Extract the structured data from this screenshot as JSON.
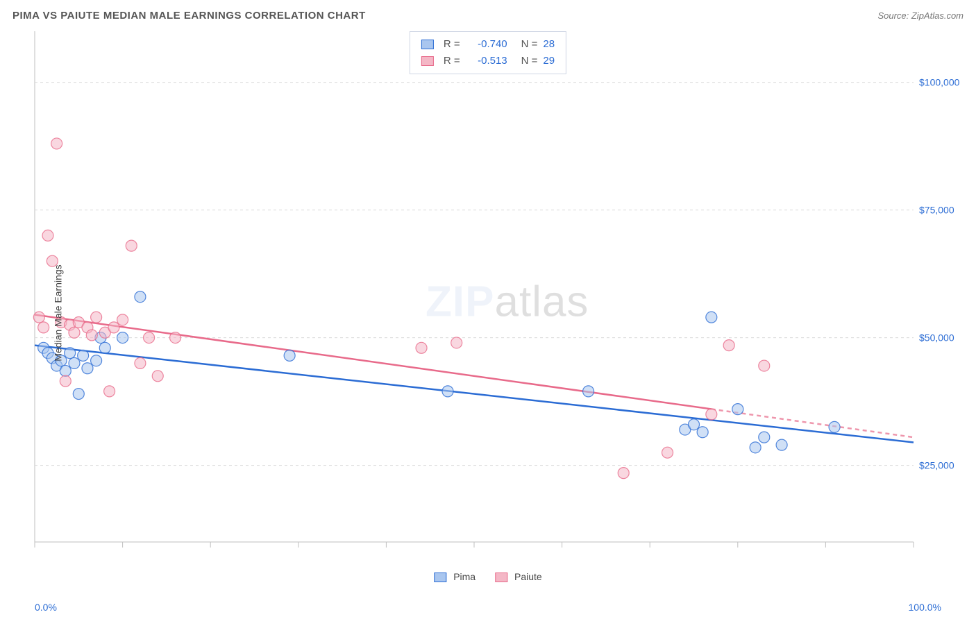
{
  "title": "PIMA VS PAIUTE MEDIAN MALE EARNINGS CORRELATION CHART",
  "source": "Source: ZipAtlas.com",
  "ylabel": "Median Male Earnings",
  "watermark_a": "ZIP",
  "watermark_b": "atlas",
  "chart": {
    "type": "scatter-with-regression",
    "background_color": "#ffffff",
    "grid_color": "#d9d9d9",
    "axis_color": "#bfbfbf",
    "tick_color": "#bfbfbf",
    "xlim": [
      0,
      100
    ],
    "ylim": [
      10000,
      110000
    ],
    "x_ticks": [
      0,
      10,
      20,
      30,
      40,
      50,
      60,
      70,
      80,
      90,
      100
    ],
    "y_gridlines": [
      25000,
      50000,
      75000,
      100000
    ],
    "y_tick_labels": [
      "$25,000",
      "$50,000",
      "$75,000",
      "$100,000"
    ],
    "y_tick_color": "#2b6cd4",
    "y_tick_fontsize": 14,
    "x_min_label": "0.0%",
    "x_max_label": "100.0%",
    "marker_radius": 8,
    "marker_opacity": 0.55,
    "line_width": 2.5
  },
  "series": [
    {
      "name": "Pima",
      "color_stroke": "#2b6cd4",
      "color_fill": "#a9c6ef",
      "R": "-0.740",
      "N": "28",
      "regression": {
        "x1": 0,
        "y1": 48500,
        "x2": 100,
        "y2": 29500,
        "dash_after_x": null
      },
      "points": [
        [
          1,
          48000
        ],
        [
          1.5,
          47000
        ],
        [
          2,
          46000
        ],
        [
          2.5,
          44500
        ],
        [
          3,
          45500
        ],
        [
          3.5,
          43500
        ],
        [
          4,
          47000
        ],
        [
          4.5,
          45000
        ],
        [
          5,
          39000
        ],
        [
          5.5,
          46500
        ],
        [
          6,
          44000
        ],
        [
          7,
          45500
        ],
        [
          7.5,
          50000
        ],
        [
          8,
          48000
        ],
        [
          10,
          50000
        ],
        [
          12,
          58000
        ],
        [
          29,
          46500
        ],
        [
          47,
          39500
        ],
        [
          63,
          39500
        ],
        [
          74,
          32000
        ],
        [
          75,
          33000
        ],
        [
          76,
          31500
        ],
        [
          77,
          54000
        ],
        [
          80,
          36000
        ],
        [
          82,
          28500
        ],
        [
          83,
          30500
        ],
        [
          85,
          29000
        ],
        [
          91,
          32500
        ]
      ]
    },
    {
      "name": "Paiute",
      "color_stroke": "#e86a8a",
      "color_fill": "#f4b7c6",
      "R": "-0.513",
      "N": "29",
      "regression": {
        "x1": 0,
        "y1": 54500,
        "x2": 100,
        "y2": 30500,
        "dash_after_x": 77
      },
      "points": [
        [
          0.5,
          54000
        ],
        [
          1,
          52000
        ],
        [
          1.5,
          70000
        ],
        [
          2,
          65000
        ],
        [
          2.5,
          88000
        ],
        [
          3,
          53000
        ],
        [
          3.5,
          41500
        ],
        [
          4,
          52500
        ],
        [
          4.5,
          51000
        ],
        [
          5,
          53000
        ],
        [
          6,
          52000
        ],
        [
          6.5,
          50500
        ],
        [
          7,
          54000
        ],
        [
          8,
          51000
        ],
        [
          8.5,
          39500
        ],
        [
          9,
          52000
        ],
        [
          10,
          53500
        ],
        [
          11,
          68000
        ],
        [
          12,
          45000
        ],
        [
          13,
          50000
        ],
        [
          14,
          42500
        ],
        [
          16,
          50000
        ],
        [
          44,
          48000
        ],
        [
          48,
          49000
        ],
        [
          67,
          23500
        ],
        [
          72,
          27500
        ],
        [
          79,
          48500
        ],
        [
          83,
          44500
        ],
        [
          77,
          35000
        ]
      ]
    }
  ],
  "legend": {
    "series_a": "Pima",
    "series_b": "Paiute"
  }
}
